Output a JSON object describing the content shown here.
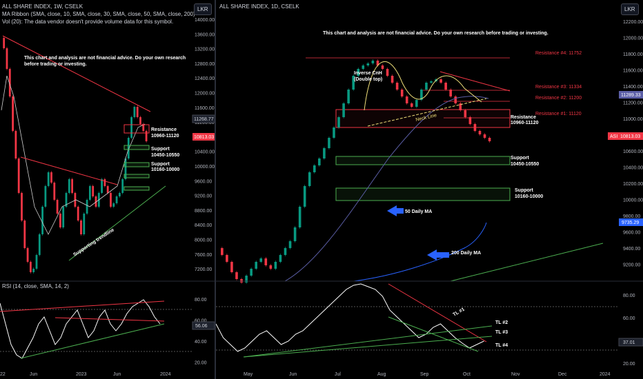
{
  "left_chart": {
    "symbol_line": "ALL SHARE INDEX, 1W, CSELK",
    "ma_line": "MA Ribbon (SMA, close, 10, SMA, close, 30, SMA, close, 50, SMA, close, 200)",
    "vol_line": "Vol (20): The data vendor doesn't provide volume data for this symbol.",
    "currency": "LKR",
    "disclaimer_1": "This chart and analysis are not financial advice. Do your own research",
    "disclaimer_2": "before trading or investing.",
    "labels": {
      "resistance": "Resistance",
      "resistance_range": "10960-11120",
      "support1": "Support",
      "support1_range": "10450-10550",
      "support2": "Support",
      "support2_range": "10160-10000",
      "trendline": "Supporting trendline"
    },
    "price_badge_1": "11268.77",
    "price_badge_2": "10813.03",
    "y_ticks": [
      "14000.00",
      "13600.00",
      "13200.00",
      "12800.00",
      "12400.00",
      "12000.00",
      "11600.00",
      "11200.00",
      "10800.00",
      "10400.00",
      "10000.00",
      "9600.00",
      "9200.00",
      "8800.00",
      "8400.00",
      "8000.00",
      "7600.00",
      "7200.00"
    ],
    "x_ticks": [
      "22",
      "Jun",
      "2023",
      "Jun",
      "2024"
    ],
    "rsi_header": "RSI (14, close, SMA, 14, 2)",
    "rsi_ticks": [
      "80.00",
      "60.00",
      "40.00",
      "20.00"
    ],
    "rsi_badge": "56.06"
  },
  "right_chart": {
    "symbol_line": "ALL SHARE INDEX, 1D, CSELK",
    "currency": "LKR",
    "disclaimer": "This chart and analysis are not financial advice. Do your own research before trading or investing.",
    "labels": {
      "res4": "Resistance #4: 11752",
      "res3": "Resistance #3: 11334",
      "res2": "Resistance #2: 11200",
      "res1": "Resistance #1: 11120",
      "resistance": "Resistance",
      "resistance_range": "10960-11120",
      "support1": "Support",
      "support1_range": "10450-10550",
      "support2": "Support",
      "support2_range": "10160-10000",
      "pattern_1": "Inverse CnH",
      "pattern_2": "(Double top)",
      "neckline": "Neck Line",
      "ma50": "50 Daily MA",
      "ma200": "200 Daily MA",
      "tl1": "TL #1",
      "tl2": "TL #2",
      "tl3": "TL #3",
      "tl4": "TL #4"
    },
    "price_badge_ma": "11289.33",
    "price_badge_asi_label": "ASI",
    "price_badge_asi": "10813.03",
    "price_badge_ma200": "9735.29",
    "y_ticks": [
      "12200.00",
      "12000.00",
      "11800.00",
      "11600.00",
      "11400.00",
      "11200.00",
      "11000.00",
      "10800.00",
      "10600.00",
      "10400.00",
      "10200.00",
      "10000.00",
      "9800.00",
      "9600.00",
      "9400.00",
      "9200.00"
    ],
    "x_ticks": [
      "May",
      "Jun",
      "Jul",
      "Aug",
      "Sep",
      "Oct",
      "Nov",
      "Dec",
      "2024"
    ],
    "rsi_ticks": [
      "80.00",
      "60.00",
      "40.00",
      "20.00"
    ],
    "rsi_badge": "37.01"
  },
  "colors": {
    "up": "#089981",
    "down": "#f23645",
    "resistance": "#f23645",
    "support": "#4caf50",
    "ma_arrow": "#2962ff",
    "ma50": "#5b5ea6",
    "ma200": "#2962ff"
  }
}
